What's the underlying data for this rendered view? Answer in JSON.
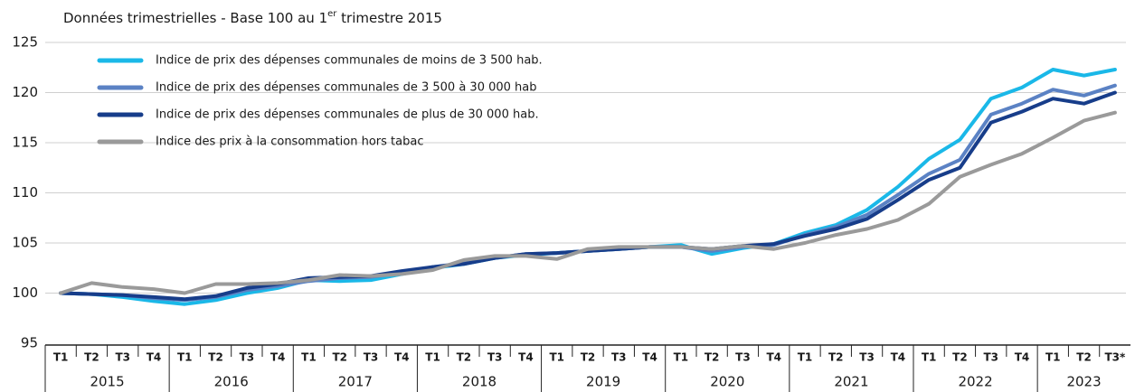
{
  "chart_data": {
    "type": "line",
    "subtitle_parts": [
      "Données trimestrielles - Base 100 au 1",
      "er",
      " trimestre 2015"
    ],
    "categories": [
      "T1",
      "T2",
      "T3",
      "T4",
      "T1",
      "T2",
      "T3",
      "T4",
      "T1",
      "T2",
      "T3",
      "T4",
      "T1",
      "T2",
      "T3",
      "T4",
      "T1",
      "T2",
      "T3",
      "T4",
      "T1",
      "T2",
      "T3",
      "T4",
      "T1",
      "T2",
      "T3",
      "T4",
      "T1",
      "T2",
      "T3",
      "T4",
      "T1",
      "T2",
      "T3*"
    ],
    "years": [
      "2015",
      "2016",
      "2017",
      "2018",
      "2019",
      "2020",
      "2021",
      "2022",
      "2023"
    ],
    "series": [
      {
        "name": "Indice de prix des dépenses communales de moins de 3 500 hab.",
        "color": "#1ab8e8",
        "values": [
          100,
          99.9,
          99.6,
          99.2,
          98.9,
          99.3,
          100.0,
          100.5,
          101.3,
          101.2,
          101.3,
          101.9,
          102.5,
          102.9,
          103.5,
          103.8,
          104.0,
          104.2,
          104.4,
          104.6,
          104.8,
          103.9,
          104.5,
          104.9,
          106.0,
          106.8,
          108.3,
          110.6,
          113.4,
          115.3,
          119.4,
          120.5,
          122.3,
          121.7,
          122.3
        ]
      },
      {
        "name": "Indice de prix des dépenses communales de 3 500 à 30 000 hab",
        "color": "#5b82c4",
        "values": [
          100,
          99.9,
          99.8,
          99.5,
          99.3,
          99.6,
          100.3,
          100.7,
          101.2,
          101.5,
          101.6,
          102.0,
          102.6,
          103.0,
          103.5,
          103.9,
          104.0,
          104.2,
          104.4,
          104.6,
          104.6,
          104.2,
          104.6,
          104.8,
          105.8,
          106.6,
          107.8,
          109.8,
          111.9,
          113.3,
          117.8,
          118.9,
          120.3,
          119.7,
          120.7
        ]
      },
      {
        "name": "Indice de prix des dépenses communales de plus de 30 000 hab.",
        "color": "#173d8a",
        "values": [
          100,
          99.9,
          99.8,
          99.6,
          99.4,
          99.7,
          100.5,
          100.9,
          101.5,
          101.6,
          101.7,
          102.2,
          102.6,
          102.9,
          103.5,
          103.9,
          104.0,
          104.2,
          104.4,
          104.6,
          104.6,
          104.4,
          104.7,
          104.9,
          105.7,
          106.4,
          107.4,
          109.3,
          111.3,
          112.5,
          117.0,
          118.1,
          119.4,
          118.9,
          120.0
        ]
      },
      {
        "name": "Indice des prix à la consommation hors tabac",
        "color": "#9a9a9a",
        "values": [
          100,
          101.0,
          100.6,
          100.4,
          100.0,
          100.9,
          100.9,
          101.0,
          101.3,
          101.8,
          101.7,
          101.9,
          102.3,
          103.3,
          103.7,
          103.7,
          103.4,
          104.4,
          104.6,
          104.6,
          104.6,
          104.4,
          104.7,
          104.4,
          105.0,
          105.8,
          106.4,
          107.3,
          108.9,
          111.6,
          112.8,
          113.9,
          115.5,
          117.2,
          118.0
        ]
      }
    ],
    "ylim": [
      95,
      125
    ],
    "yticks": [
      95,
      100,
      105,
      110,
      115,
      120,
      125
    ],
    "grid": true,
    "legend": "top-left"
  }
}
